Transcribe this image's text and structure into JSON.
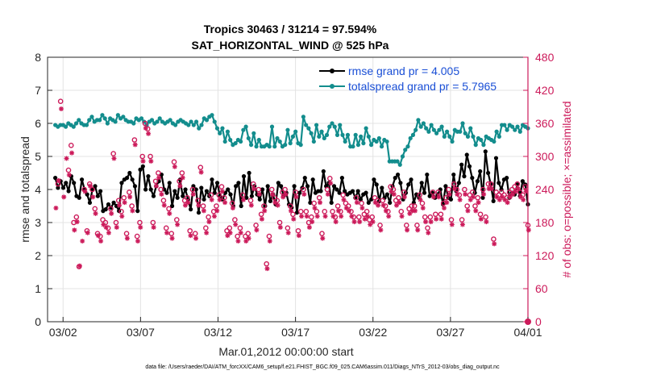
{
  "colors": {
    "rmse": "#000000",
    "spread": "#138d8d",
    "obs": "#cc1a5a",
    "legend_text": "#1a4fd6",
    "grid": "#e3e3e3",
    "axis": "#262626"
  },
  "chart_data": {
    "type": "line",
    "title": "Tropics 30463 / 31214 = 97.594%",
    "subtitle": "SAT_HORIZONTAL_WIND @ 525 hPa",
    "xlabel": "Mar.01,2012 00:00:00 start",
    "ylabel": "rmse and totalspread",
    "ylabel_right": "# of obs: o=possible; ×=assimilated",
    "footnote": "data file: /Users/raeder/DAI/ATM_forcXX/CAM6_setup/f.e21.FHIST_BGC.f09_025.CAM6assim.011/Diags_NTrS_2012-03/obs_diag_output.nc",
    "xlim": [
      0.5,
      31.5
    ],
    "ylim": [
      0,
      8
    ],
    "ylim_right": [
      0,
      480
    ],
    "x_ticks": [
      {
        "x": 1.5,
        "label": "03/02"
      },
      {
        "x": 6.5,
        "label": "03/07"
      },
      {
        "x": 11.5,
        "label": "03/12"
      },
      {
        "x": 16.5,
        "label": "03/17"
      },
      {
        "x": 21.5,
        "label": "03/22"
      },
      {
        "x": 26.5,
        "label": "03/27"
      },
      {
        "x": 31.5,
        "label": "04/01"
      }
    ],
    "y_ticks": [
      "0",
      "1",
      "2",
      "3",
      "4",
      "5",
      "6",
      "7",
      "8"
    ],
    "y_ticks_right": [
      "0",
      "60",
      "120",
      "180",
      "240",
      "300",
      "360",
      "420",
      "480"
    ],
    "legend": [
      {
        "name": "rmse grand pr = 4.005",
        "series": "rmse"
      },
      {
        "name": "totalspread grand pr = 5.7965",
        "series": "spread"
      }
    ],
    "series": [
      {
        "name": "rmse",
        "values": [
          4.35,
          4.05,
          4.25,
          4.05,
          4.2,
          3.95,
          4.4,
          4.2,
          3.8,
          3.75,
          4.3,
          4.0,
          3.85,
          3.6,
          4.0,
          4.1,
          3.8,
          3.95,
          3.35,
          3.4,
          3.55,
          3.45,
          3.6,
          3.5,
          3.35,
          4.2,
          4.3,
          4.35,
          4.5,
          4.3,
          4.1,
          3.35,
          4.6,
          4.7,
          4.0,
          4.4,
          4.0,
          3.8,
          4.1,
          4.25,
          4.45,
          4.0,
          3.9,
          4.2,
          3.5,
          3.95,
          3.75,
          4.3,
          3.8,
          4.0,
          3.7,
          3.4,
          4.1,
          4.0,
          3.3,
          4.05,
          3.7,
          3.95,
          3.8,
          4.3,
          3.9,
          4.2,
          3.8,
          3.7,
          3.9,
          4.0,
          3.85,
          3.5,
          4.1,
          4.2,
          3.5,
          4.4,
          3.75,
          4.5,
          3.8,
          4.1,
          3.85,
          3.7,
          4.0,
          3.5,
          4.1,
          3.65,
          3.85,
          3.55,
          4.2,
          4.1,
          3.8,
          3.9,
          3.55,
          3.45,
          4.1,
          3.3,
          3.9,
          4.05,
          4.35,
          4.1,
          3.6,
          4.3,
          3.9,
          3.95,
          3.95,
          4.55,
          4.1,
          4.2,
          3.6,
          4.1,
          4.0,
          3.9,
          4.35,
          3.95,
          3.85,
          3.9,
          3.95,
          3.75,
          3.95,
          3.7,
          3.85,
          3.9,
          3.6,
          3.7,
          4.3,
          4.15,
          3.65,
          4.05,
          3.75,
          3.85,
          3.6,
          4.1,
          4.35,
          4.45,
          4.2,
          3.7,
          3.9,
          4.15,
          4.3,
          3.6,
          3.85,
          3.75,
          4.2,
          3.9,
          4.45,
          3.8,
          3.9,
          3.75,
          3.85,
          4.0,
          3.55,
          4.1,
          3.75,
          3.7,
          4.45,
          3.95,
          4.2,
          4.75,
          4.4,
          5.05,
          4.7,
          4.35,
          3.9,
          4.25,
          4.55,
          3.75,
          5.15,
          4.5,
          4.15,
          3.65,
          4.95,
          4.2,
          4.0,
          4.3,
          4.35,
          3.75,
          3.9,
          3.85,
          4.15,
          3.8,
          4.25,
          4.15,
          3.55
        ],
        "color": "#000000"
      },
      {
        "name": "totalspread",
        "values": [
          5.95,
          5.9,
          5.95,
          5.95,
          5.9,
          6.0,
          5.95,
          5.9,
          6.0,
          6.1,
          6.0,
          5.95,
          5.95,
          6.1,
          6.2,
          6.05,
          6.1,
          6.1,
          6.25,
          6.15,
          6.0,
          6.15,
          6.1,
          6.05,
          6.25,
          6.15,
          6.2,
          6.1,
          6.05,
          6.05,
          6.0,
          6.15,
          6.1,
          6.15,
          6.05,
          5.95,
          6.05,
          6.1,
          6.0,
          6.05,
          6.15,
          6.05,
          6.0,
          6.05,
          6.1,
          6.0,
          5.95,
          6.05,
          6.1,
          6.05,
          6.0,
          5.95,
          6.05,
          5.95,
          6.05,
          5.85,
          5.95,
          6.15,
          6.1,
          6.2,
          6.25,
          6.05,
          5.85,
          5.7,
          5.85,
          5.45,
          5.75,
          5.5,
          5.35,
          5.4,
          5.5,
          5.45,
          5.8,
          5.9,
          5.55,
          5.35,
          5.7,
          5.3,
          5.5,
          5.3,
          5.3,
          5.35,
          5.3,
          5.9,
          5.3,
          5.55,
          5.45,
          5.3,
          5.35,
          5.8,
          5.4,
          5.6,
          5.75,
          5.4,
          5.35,
          6.2,
          5.95,
          5.85,
          5.7,
          5.45,
          5.95,
          5.6,
          5.75,
          5.55,
          5.65,
          5.9,
          6.0,
          5.9,
          5.65,
          5.95,
          5.65,
          5.45,
          5.65,
          5.3,
          5.3,
          5.65,
          5.35,
          5.6,
          5.4,
          5.85,
          5.6,
          5.35,
          5.5,
          5.45,
          5.55,
          5.3,
          5.5,
          5.45,
          4.85,
          4.85,
          4.85,
          4.85,
          4.75,
          5.0,
          5.2,
          5.3,
          5.55,
          5.65,
          5.8,
          6.1,
          5.9,
          6.0,
          5.85,
          5.75,
          5.95,
          5.8,
          5.7,
          5.8,
          5.9,
          5.6,
          5.75,
          5.6,
          5.45,
          5.8,
          5.75,
          5.75,
          6.0,
          5.7,
          5.6,
          5.85,
          5.6,
          5.35,
          5.55,
          5.5,
          5.35,
          5.6,
          5.55,
          5.5,
          5.45,
          5.75,
          5.6,
          5.95,
          5.95,
          5.8,
          5.95,
          5.9,
          5.8,
          5.9,
          5.75,
          5.95,
          5.9,
          5.85
        ],
        "color": "#138d8d"
      },
      {
        "name": "obs possible",
        "marker": "circle",
        "values": [
          null,
          250,
          400,
          null,
          null,
          275,
          320,
          180,
          190,
          100,
          null,
          240,
          165,
          250,
          240,
          205,
          160,
          155,
          185,
          180,
          170,
          205,
          305,
          180,
          220,
          200,
          225,
          160,
          235,
          210,
          330,
          155,
          180,
          300,
          360,
          350,
          300,
          180,
          255,
          270,
          240,
          220,
          170,
          205,
          160,
          290,
          185,
          255,
          270,
          220,
          225,
          165,
          240,
          160,
          220,
          280,
          210,
          170,
          190,
          230,
          200,
          210,
          230,
          245,
          225,
          165,
          170,
          215,
          185,
          155,
          170,
          230,
          155,
          160,
          220,
          250,
          175,
          240,
          195,
          210,
          105,
          155,
          240,
          225,
          220,
          180,
          235,
          240,
          170,
          210,
          195,
          235,
          165,
          200,
          240,
          200,
          180,
          190,
          215,
          200,
          225,
          160,
          200,
          240,
          260,
          200,
          190,
          210,
          200,
          230,
          215,
          210,
          200,
          190,
          225,
          190,
          215,
          195,
          200,
          185,
          190,
          225,
          220,
          175,
          220,
          210,
          200,
          245,
          240,
          220,
          225,
          200,
          235,
          175,
          205,
          210,
          210,
          175,
          230,
          215,
          190,
          170,
          190,
          235,
          195,
          235,
          195,
          215,
          225,
          240,
          185,
          250,
          240,
          230,
          185,
          240,
          210,
          230,
          235,
          210,
          225,
          195,
          240,
          190,
          250,
          250,
          150,
          235,
          230,
          235,
          230,
          225,
          235,
          240,
          245,
          250,
          235,
          230,
          245,
          175
        ],
        "color": "#cc1a5a"
      },
      {
        "name": "obs assimilated",
        "marker": "asterisk",
        "values": [
          210,
          260,
          390,
          230,
          300,
          270,
          310,
          170,
          185,
          105,
          150,
          240,
          165,
          250,
          230,
          200,
          160,
          150,
          180,
          175,
          165,
          200,
          300,
          175,
          215,
          195,
          220,
          155,
          230,
          205,
          325,
          150,
          175,
          295,
          355,
          345,
          295,
          175,
          250,
          265,
          235,
          215,
          165,
          200,
          155,
          285,
          180,
          250,
          265,
          215,
          220,
          160,
          235,
          155,
          215,
          275,
          205,
          165,
          185,
          225,
          195,
          205,
          225,
          240,
          220,
          160,
          165,
          210,
          180,
          150,
          165,
          225,
          150,
          155,
          215,
          245,
          170,
          235,
          190,
          205,
          100,
          150,
          235,
          220,
          215,
          175,
          230,
          235,
          165,
          205,
          190,
          230,
          160,
          195,
          235,
          195,
          175,
          185,
          210,
          195,
          220,
          155,
          195,
          235,
          255,
          195,
          185,
          205,
          195,
          225,
          210,
          205,
          195,
          185,
          220,
          185,
          210,
          190,
          195,
          180,
          185,
          220,
          215,
          170,
          215,
          205,
          195,
          240,
          235,
          215,
          220,
          195,
          230,
          170,
          200,
          205,
          205,
          170,
          225,
          210,
          185,
          165,
          185,
          230,
          190,
          230,
          190,
          210,
          220,
          235,
          180,
          245,
          235,
          225,
          180,
          235,
          205,
          225,
          230,
          205,
          220,
          190,
          235,
          185,
          245,
          245,
          145,
          230,
          225,
          230,
          225,
          220,
          230,
          235,
          240,
          245,
          230,
          225,
          240,
          170
        ],
        "color": "#cc1a5a"
      }
    ]
  }
}
